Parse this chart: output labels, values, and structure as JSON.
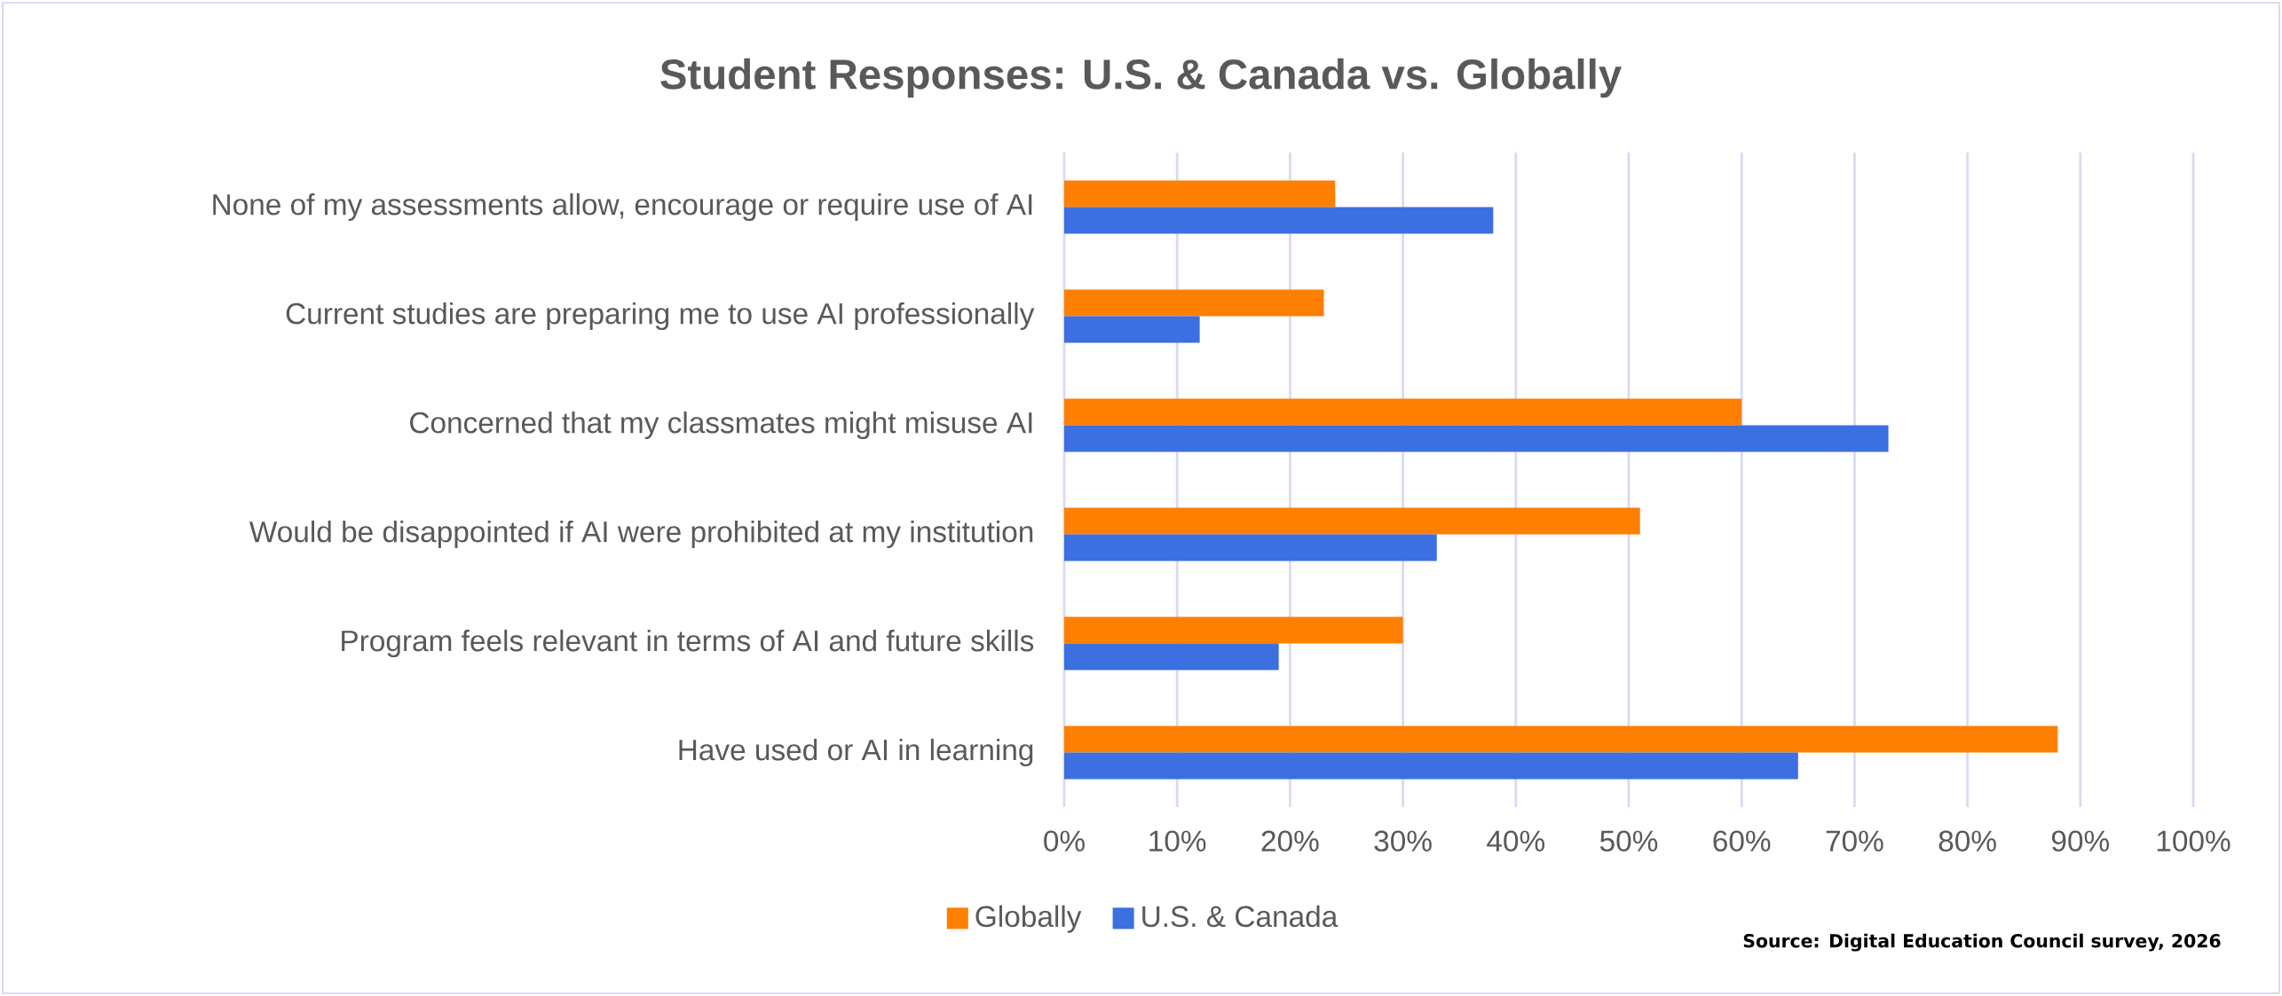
{
  "chart_data": {
    "type": "bar",
    "orientation": "horizontal",
    "title": "Student Responses: U.S. & Canada vs. Globally",
    "categories": [
      "None of my assessments allow, encourage or require use of AI",
      "Current studies are preparing me to use AI professionally",
      "Concerned that my classmates might misuse AI",
      "Would be disappointed if AI were prohibited at my institution",
      "Program feels relevant in terms of AI and future skills",
      "Have used or AI in learning"
    ],
    "series": [
      {
        "name": "Globally",
        "color": "#ff7f00",
        "values": [
          24,
          23,
          60,
          51,
          30,
          88
        ]
      },
      {
        "name": "U.S. & Canada",
        "color": "#3c6fe0",
        "values": [
          38,
          12,
          73,
          33,
          19,
          65
        ]
      }
    ],
    "xlim": [
      0,
      100
    ],
    "xticks": [
      {
        "value": 0,
        "label": "0%"
      },
      {
        "value": 10,
        "label": "10%"
      },
      {
        "value": 20,
        "label": "20%"
      },
      {
        "value": 30,
        "label": "30%"
      },
      {
        "value": 40,
        "label": "40%"
      },
      {
        "value": 50,
        "label": "50%"
      },
      {
        "value": 60,
        "label": "60%"
      },
      {
        "value": 70,
        "label": "70%"
      },
      {
        "value": 80,
        "label": "80%"
      },
      {
        "value": 90,
        "label": "90%"
      },
      {
        "value": 100,
        "label": "100%"
      }
    ],
    "grid": "x",
    "legend": "bottom",
    "annotations": [
      "Source: Digital Education Council survey, 2026"
    ]
  }
}
